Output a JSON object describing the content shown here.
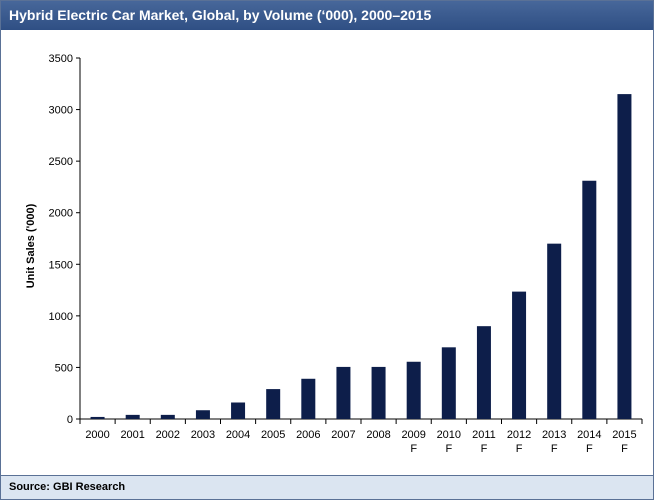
{
  "header": {
    "title": "Hybrid Electric Car Market, Global, by Volume (‘000), 2000–2015"
  },
  "footer": {
    "source": "Source: GBI Research"
  },
  "colors": {
    "bar": "#0d1e4a",
    "header": "#3a5a8c",
    "footer": "#dbe5f1"
  },
  "chart_data": {
    "type": "bar",
    "title": "Hybrid Electric Car Market, Global, by Volume (‘000), 2000–2015",
    "xlabel": "",
    "ylabel": "Unit Sales ('000)",
    "ylim": [
      0,
      3500
    ],
    "yticks": [
      0,
      500,
      1000,
      1500,
      2000,
      2500,
      3000,
      3500
    ],
    "grid": false,
    "categories": [
      {
        "year": "2000",
        "note": ""
      },
      {
        "year": "2001",
        "note": ""
      },
      {
        "year": "2002",
        "note": ""
      },
      {
        "year": "2003",
        "note": ""
      },
      {
        "year": "2004",
        "note": ""
      },
      {
        "year": "2005",
        "note": ""
      },
      {
        "year": "2006",
        "note": ""
      },
      {
        "year": "2007",
        "note": ""
      },
      {
        "year": "2008",
        "note": ""
      },
      {
        "year": "2009",
        "note": "F"
      },
      {
        "year": "2010",
        "note": "F"
      },
      {
        "year": "2011",
        "note": "F"
      },
      {
        "year": "2012",
        "note": "F"
      },
      {
        "year": "2013",
        "note": "F"
      },
      {
        "year": "2014",
        "note": "F"
      },
      {
        "year": "2015",
        "note": "F"
      }
    ],
    "values": [
      20,
      40,
      40,
      85,
      160,
      290,
      390,
      505,
      505,
      555,
      695,
      900,
      1235,
      1700,
      2310,
      3150
    ]
  }
}
